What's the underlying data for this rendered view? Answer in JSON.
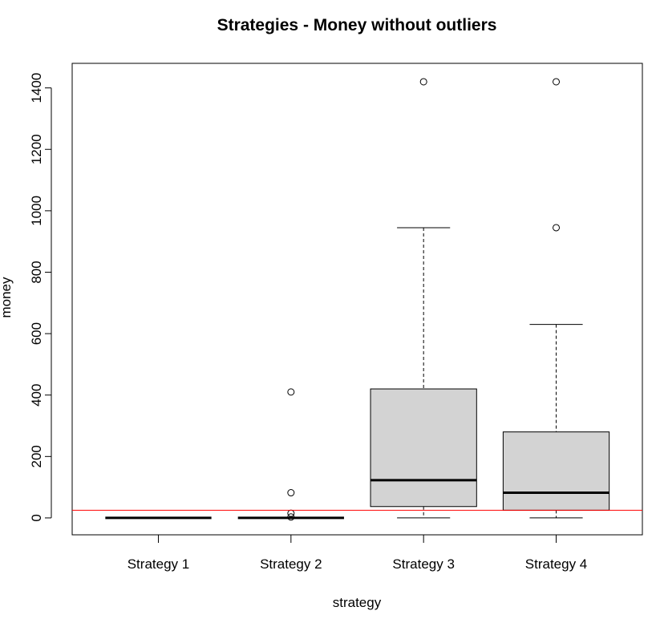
{
  "chart_data": {
    "type": "boxplot",
    "title": "Strategies - Money without outliers",
    "xlabel": "strategy",
    "ylabel": "money",
    "ylim": [
      -55,
      1480
    ],
    "y_ticks": [
      0,
      200,
      400,
      600,
      800,
      1000,
      1200,
      1400
    ],
    "y_tick_labels": [
      "0",
      "200",
      "400",
      "600",
      "800",
      "1000",
      "1200",
      "1400"
    ],
    "categories": [
      "Strategy 1",
      "Strategy 2",
      "Strategy 3",
      "Strategy 4"
    ],
    "boxes": [
      {
        "whisker_low": 0,
        "q1": 0,
        "median": 0,
        "q3": 0,
        "whisker_high": 0,
        "outliers": []
      },
      {
        "whisker_low": 0,
        "q1": 0,
        "median": 0,
        "q3": 0,
        "whisker_high": 0,
        "outliers": [
          3,
          15,
          82,
          410
        ]
      },
      {
        "whisker_low": 0,
        "q1": 37,
        "median": 123,
        "q3": 420,
        "whisker_high": 945,
        "outliers": [
          1420
        ]
      },
      {
        "whisker_low": 0,
        "q1": 25,
        "median": 82,
        "q3": 280,
        "whisker_high": 630,
        "outliers": [
          945,
          1420
        ]
      }
    ],
    "reference_line": {
      "y": 25,
      "color": "#ff0000"
    },
    "box_fill": "#d3d3d3",
    "grid": false,
    "legend": "none"
  }
}
